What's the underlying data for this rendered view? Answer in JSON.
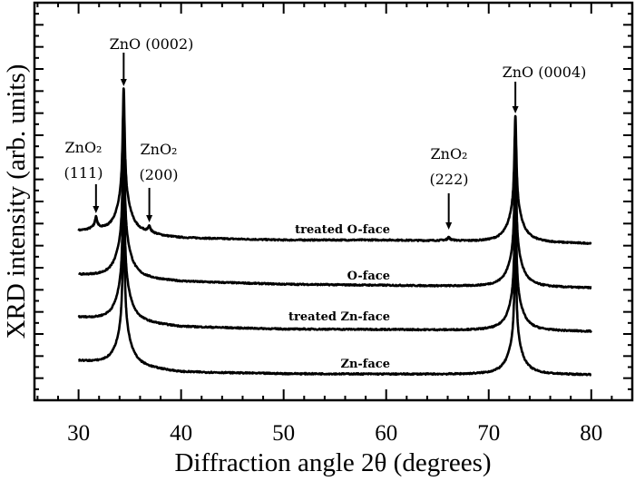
{
  "chart_data": {
    "type": "line",
    "title": "",
    "xlabel": "Diffraction angle 2θ (degrees)",
    "ylabel": "XRD intensity (arb. units)",
    "xlim": [
      25.7,
      84
    ],
    "ylim": [
      0,
      18
    ],
    "xticks": [
      30,
      40,
      50,
      60,
      70,
      80
    ],
    "xtick_labels": [
      "30",
      "40",
      "50",
      "60",
      "70",
      "80"
    ],
    "y_tick_labels_shown": false,
    "grid": false,
    "legend": "none (series labelled inline)",
    "line_color": "#000000",
    "series": [
      {
        "name": "treated O-face",
        "baseline": [
          [
            30,
            7.62
          ],
          [
            40,
            7.34
          ],
          [
            50,
            7.25
          ],
          [
            60,
            7.25
          ],
          [
            80,
            7.09
          ]
        ],
        "peaks": [
          [
            31.7,
            0.6
          ],
          [
            34.4,
            6.6
          ],
          [
            36.9,
            0.3
          ],
          [
            66.1,
            0.15
          ],
          [
            72.6,
            5.7
          ]
        ]
      },
      {
        "name": "O-face",
        "baseline": [
          [
            30,
            5.66
          ],
          [
            40,
            5.37
          ],
          [
            50,
            5.25
          ],
          [
            60,
            5.2
          ],
          [
            80,
            5.08
          ]
        ],
        "peaks": [
          [
            34.4,
            6.6
          ],
          [
            72.6,
            5.7
          ]
        ]
      },
      {
        "name": "treated Zn-face",
        "baseline": [
          [
            30,
            3.73
          ],
          [
            40,
            3.32
          ],
          [
            50,
            3.22
          ],
          [
            60,
            3.2
          ],
          [
            80,
            3.11
          ]
        ],
        "peaks": [
          [
            34.4,
            6.6
          ],
          [
            72.6,
            5.7
          ]
        ]
      },
      {
        "name": "Zn-face",
        "baseline": [
          [
            30,
            1.76
          ],
          [
            40,
            1.27
          ],
          [
            50,
            1.2
          ],
          [
            60,
            1.18
          ],
          [
            80,
            1.15
          ]
        ],
        "peaks": [
          [
            34.4,
            6.6
          ],
          [
            72.6,
            5.7
          ]
        ]
      }
    ],
    "annotations": [
      {
        "lines": [
          "ZnO (0002)"
        ],
        "x": 34.4
      },
      {
        "lines": [
          "ZnO (0004)"
        ],
        "x": 72.6
      },
      {
        "lines": [
          "ZnO₂",
          "(111)"
        ],
        "x": 31.7
      },
      {
        "lines": [
          "ZnO₂",
          "(200)"
        ],
        "x": 36.9
      },
      {
        "lines": [
          "ZnO₂",
          "(222)"
        ],
        "x": 66.1
      }
    ]
  }
}
